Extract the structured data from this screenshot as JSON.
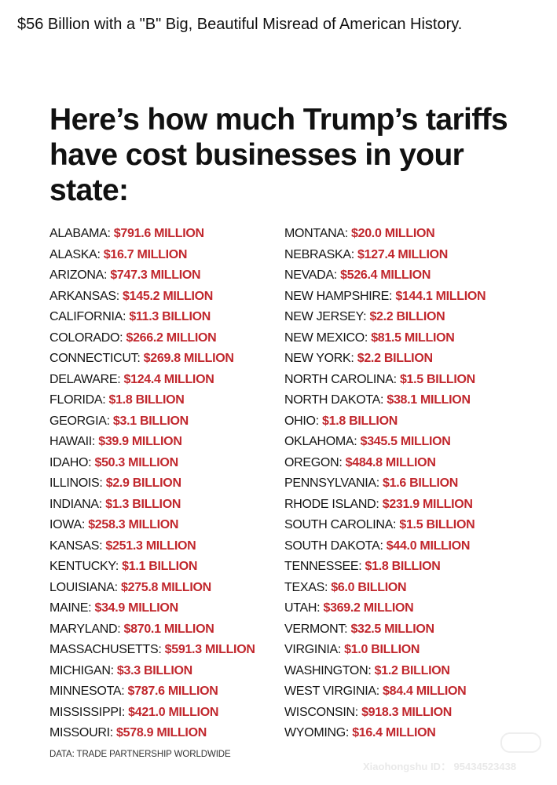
{
  "post": {
    "text": "$56 Billion with a \"B\" Big, Beautiful Misread of American History."
  },
  "graphic": {
    "headline": "Here’s how much Trump’s tariffs have cost businesses in your state:",
    "accent_color": "#c1272d",
    "left_column": [
      {
        "state": "ALABAMA:",
        "amount": "$791.6 MILLION"
      },
      {
        "state": "ALASKA:",
        "amount": "$16.7 MILLION"
      },
      {
        "state": "ARIZONA:",
        "amount": "$747.3 MILLION"
      },
      {
        "state": "ARKANSAS:",
        "amount": "$145.2 MILLION"
      },
      {
        "state": "CALIFORNIA:",
        "amount": "$11.3 BILLION"
      },
      {
        "state": "COLORADO:",
        "amount": "$266.2 MILLION"
      },
      {
        "state": "CONNECTICUT:",
        "amount": "$269.8 MILLION"
      },
      {
        "state": "DELAWARE:",
        "amount": "$124.4 MILLION"
      },
      {
        "state": "FLORIDA:",
        "amount": "$1.8 BILLION"
      },
      {
        "state": "GEORGIA:",
        "amount": "$3.1 BILLION"
      },
      {
        "state": "HAWAII:",
        "amount": "$39.9 MILLION"
      },
      {
        "state": "IDAHO:",
        "amount": "$50.3 MILLION"
      },
      {
        "state": "ILLINOIS:",
        "amount": "$2.9 BILLION"
      },
      {
        "state": "INDIANA:",
        "amount": "$1.3 BILLION"
      },
      {
        "state": "IOWA:",
        "amount": "$258.3 MILLION"
      },
      {
        "state": "KANSAS:",
        "amount": "$251.3 MILLION"
      },
      {
        "state": "KENTUCKY:",
        "amount": "$1.1 BILLION"
      },
      {
        "state": "LOUISIANA:",
        "amount": "$275.8 MILLION"
      },
      {
        "state": "MAINE:",
        "amount": "$34.9 MILLION"
      },
      {
        "state": "MARYLAND:",
        "amount": "$870.1 MILLION"
      },
      {
        "state": "MASSACHUSETTS:",
        "amount": "$591.3 MILLION"
      },
      {
        "state": "MICHIGAN:",
        "amount": "$3.3 BILLION"
      },
      {
        "state": "MINNESOTA:",
        "amount": "$787.6 MILLION"
      },
      {
        "state": "MISSISSIPPI:",
        "amount": "$421.0 MILLION"
      },
      {
        "state": "MISSOURI:",
        "amount": "$578.9 MILLION"
      }
    ],
    "right_column": [
      {
        "state": "MONTANA:",
        "amount": "$20.0 MILLION"
      },
      {
        "state": "NEBRASKA:",
        "amount": "$127.4 MILLION"
      },
      {
        "state": "NEVADA:",
        "amount": "$526.4 MILLION"
      },
      {
        "state": "NEW HAMPSHIRE:",
        "amount": "$144.1 MILLION"
      },
      {
        "state": "NEW JERSEY:",
        "amount": "$2.2 BILLION"
      },
      {
        "state": "NEW MEXICO:",
        "amount": "$81.5 MILLION"
      },
      {
        "state": "NEW YORK:",
        "amount": "$2.2 BILLION"
      },
      {
        "state": "NORTH CAROLINA:",
        "amount": "$1.5 BILLION"
      },
      {
        "state": "NORTH DAKOTA:",
        "amount": "$38.1 MILLION"
      },
      {
        "state": "OHIO:",
        "amount": "$1.8 BILLION"
      },
      {
        "state": "OKLAHOMA:",
        "amount": "$345.5 MILLION"
      },
      {
        "state": "OREGON:",
        "amount": "$484.8 MILLION"
      },
      {
        "state": "PENNSYLVANIA:",
        "amount": "$1.6 BILLION"
      },
      {
        "state": "RHODE ISLAND:",
        "amount": "$231.9 MILLION"
      },
      {
        "state": "SOUTH CAROLINA:",
        "amount": "$1.5 BILLION"
      },
      {
        "state": "SOUTH DAKOTA:",
        "amount": "$44.0 MILLION"
      },
      {
        "state": "TENNESSEE:",
        "amount": "$1.8 BILLION"
      },
      {
        "state": "TEXAS:",
        "amount": "$6.0 BILLION"
      },
      {
        "state": "UTAH:",
        "amount": "$369.2 MILLION"
      },
      {
        "state": "VERMONT:",
        "amount": "$32.5 MILLION"
      },
      {
        "state": "VIRGINIA:",
        "amount": "$1.0 BILLION"
      },
      {
        "state": "WASHINGTON:",
        "amount": "$1.2 BILLION"
      },
      {
        "state": "WEST VIRGINIA:",
        "amount": "$84.4 MILLION"
      },
      {
        "state": "WISCONSIN:",
        "amount": "$918.3 MILLION"
      },
      {
        "state": "WYOMING:",
        "amount": "$16.4 MILLION"
      }
    ],
    "source": "DATA: TRADE PARTNERSHIP WORLDWIDE"
  },
  "watermark": {
    "id_text": "Xiaohongshu ID： 95434523438",
    "logo_icon": "xiaohongshu-logo"
  }
}
